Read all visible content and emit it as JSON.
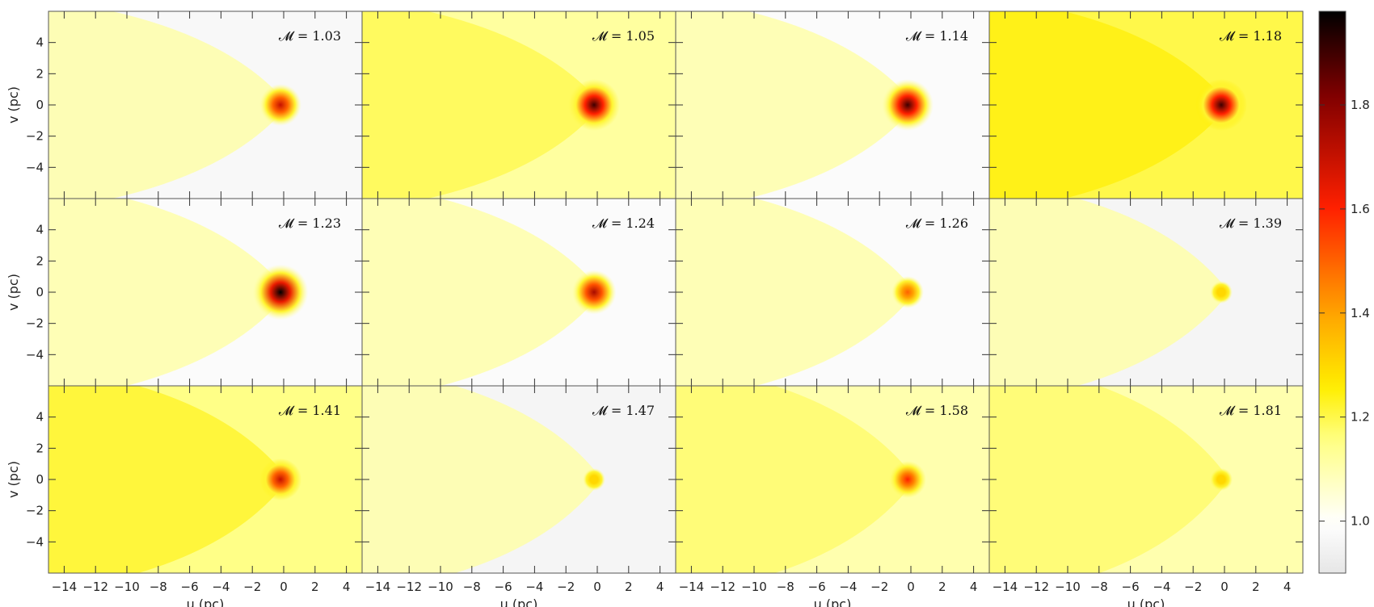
{
  "chart_data": {
    "type": "heatmap",
    "layout": "3x4 panel grid with shared colorbar",
    "xlabel": "u (pc)",
    "ylabel": "v (pc)",
    "xlim": [
      -15,
      5
    ],
    "ylim": [
      -6,
      6
    ],
    "x_ticks": [
      -14,
      -12,
      -10,
      -8,
      -6,
      -4,
      -2,
      0,
      2,
      4
    ],
    "y_ticks": [
      4,
      2,
      0,
      -2,
      -4
    ],
    "colorbar": {
      "range": [
        0.9,
        1.98
      ],
      "ticks": [
        1.0,
        1.2,
        1.4,
        1.6,
        1.8
      ],
      "tick_labels": [
        "1.0",
        "1.2",
        "1.4",
        "1.6",
        "1.8"
      ],
      "colormap": [
        "#e6e6e6",
        "#ffffff",
        "#ffff80",
        "#ffee00",
        "#ffa500",
        "#ff2000",
        "#800000",
        "#000000"
      ]
    },
    "panels": [
      {
        "label": "𝓜 = 1.03",
        "mach": 1.03,
        "background": 0.97,
        "peak": 1.7
      },
      {
        "label": "𝓜 = 1.05",
        "mach": 1.05,
        "background": 1.12,
        "peak": 1.9
      },
      {
        "label": "𝓜 = 1.14",
        "mach": 1.14,
        "background": 0.98,
        "peak": 1.9
      },
      {
        "label": "𝓜 = 1.18",
        "mach": 1.18,
        "background": 1.2,
        "peak": 1.9
      },
      {
        "label": "𝓜 = 1.23",
        "mach": 1.23,
        "background": 0.98,
        "peak": 1.98
      },
      {
        "label": "𝓜 = 1.24",
        "mach": 1.24,
        "background": 0.98,
        "peak": 1.75
      },
      {
        "label": "𝓜 = 1.26",
        "mach": 1.26,
        "background": 0.98,
        "peak": 1.5
      },
      {
        "label": "𝓜 = 1.39",
        "mach": 1.39,
        "background": 0.96,
        "peak": 1.3
      },
      {
        "label": "𝓜 = 1.41",
        "mach": 1.41,
        "background": 1.15,
        "peak": 1.7
      },
      {
        "label": "𝓜 = 1.47",
        "mach": 1.47,
        "background": 0.96,
        "peak": 1.3
      },
      {
        "label": "𝓜 = 1.58",
        "mach": 1.58,
        "background": 1.1,
        "peak": 1.6
      },
      {
        "label": "𝓜 = 1.81",
        "mach": 1.81,
        "background": 1.1,
        "peak": 1.3
      }
    ]
  }
}
